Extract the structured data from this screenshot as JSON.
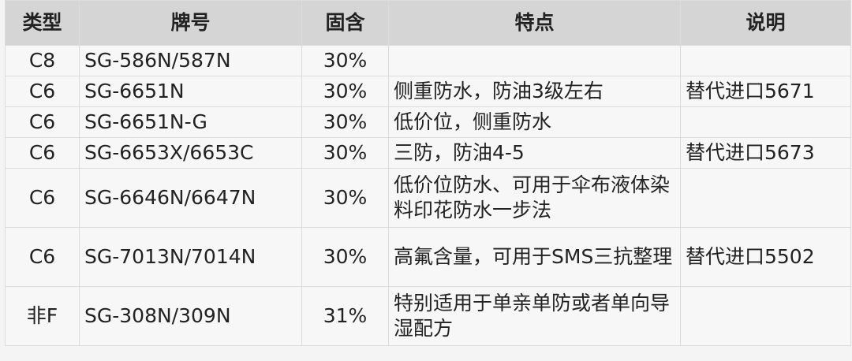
{
  "table": {
    "header": [
      "类型",
      "牌号",
      "固含",
      "特点",
      "说明"
    ],
    "rows": [
      {
        "type": "C8",
        "model": "SG-586N/587N",
        "solids": "30%"
      },
      {
        "type": "C6",
        "model": "SG-6651N",
        "solids": "30%",
        "feature": "侧重防水，防油3级左右",
        "note": "替代进口5671"
      },
      {
        "type": "C6",
        "model": "SG-6651N-G",
        "solids": "30%",
        "feature": "低价位，侧重防水"
      },
      {
        "type": "C6",
        "model": "SG-6653X/6653C",
        "solids": "30%",
        "feature": "三防，防油4-5",
        "note": "替代进口5673"
      },
      {
        "type": "C6",
        "model": "SG-6646N/6647N",
        "solids": "30%",
        "feature": "低价位防水、可用于伞布液体染料印花防水一步法"
      },
      {
        "type": "C6",
        "model": "SG-7013N/7014N",
        "solids": "30%",
        "feature": "高氟含量，可用于SMS三抗整理",
        "note": "替代进口5502"
      },
      {
        "type": "非F",
        "model": "SG-308N/309N",
        "solids": "31%",
        "feature": "特别适用于单亲单防或者单向导湿配方"
      }
    ]
  }
}
